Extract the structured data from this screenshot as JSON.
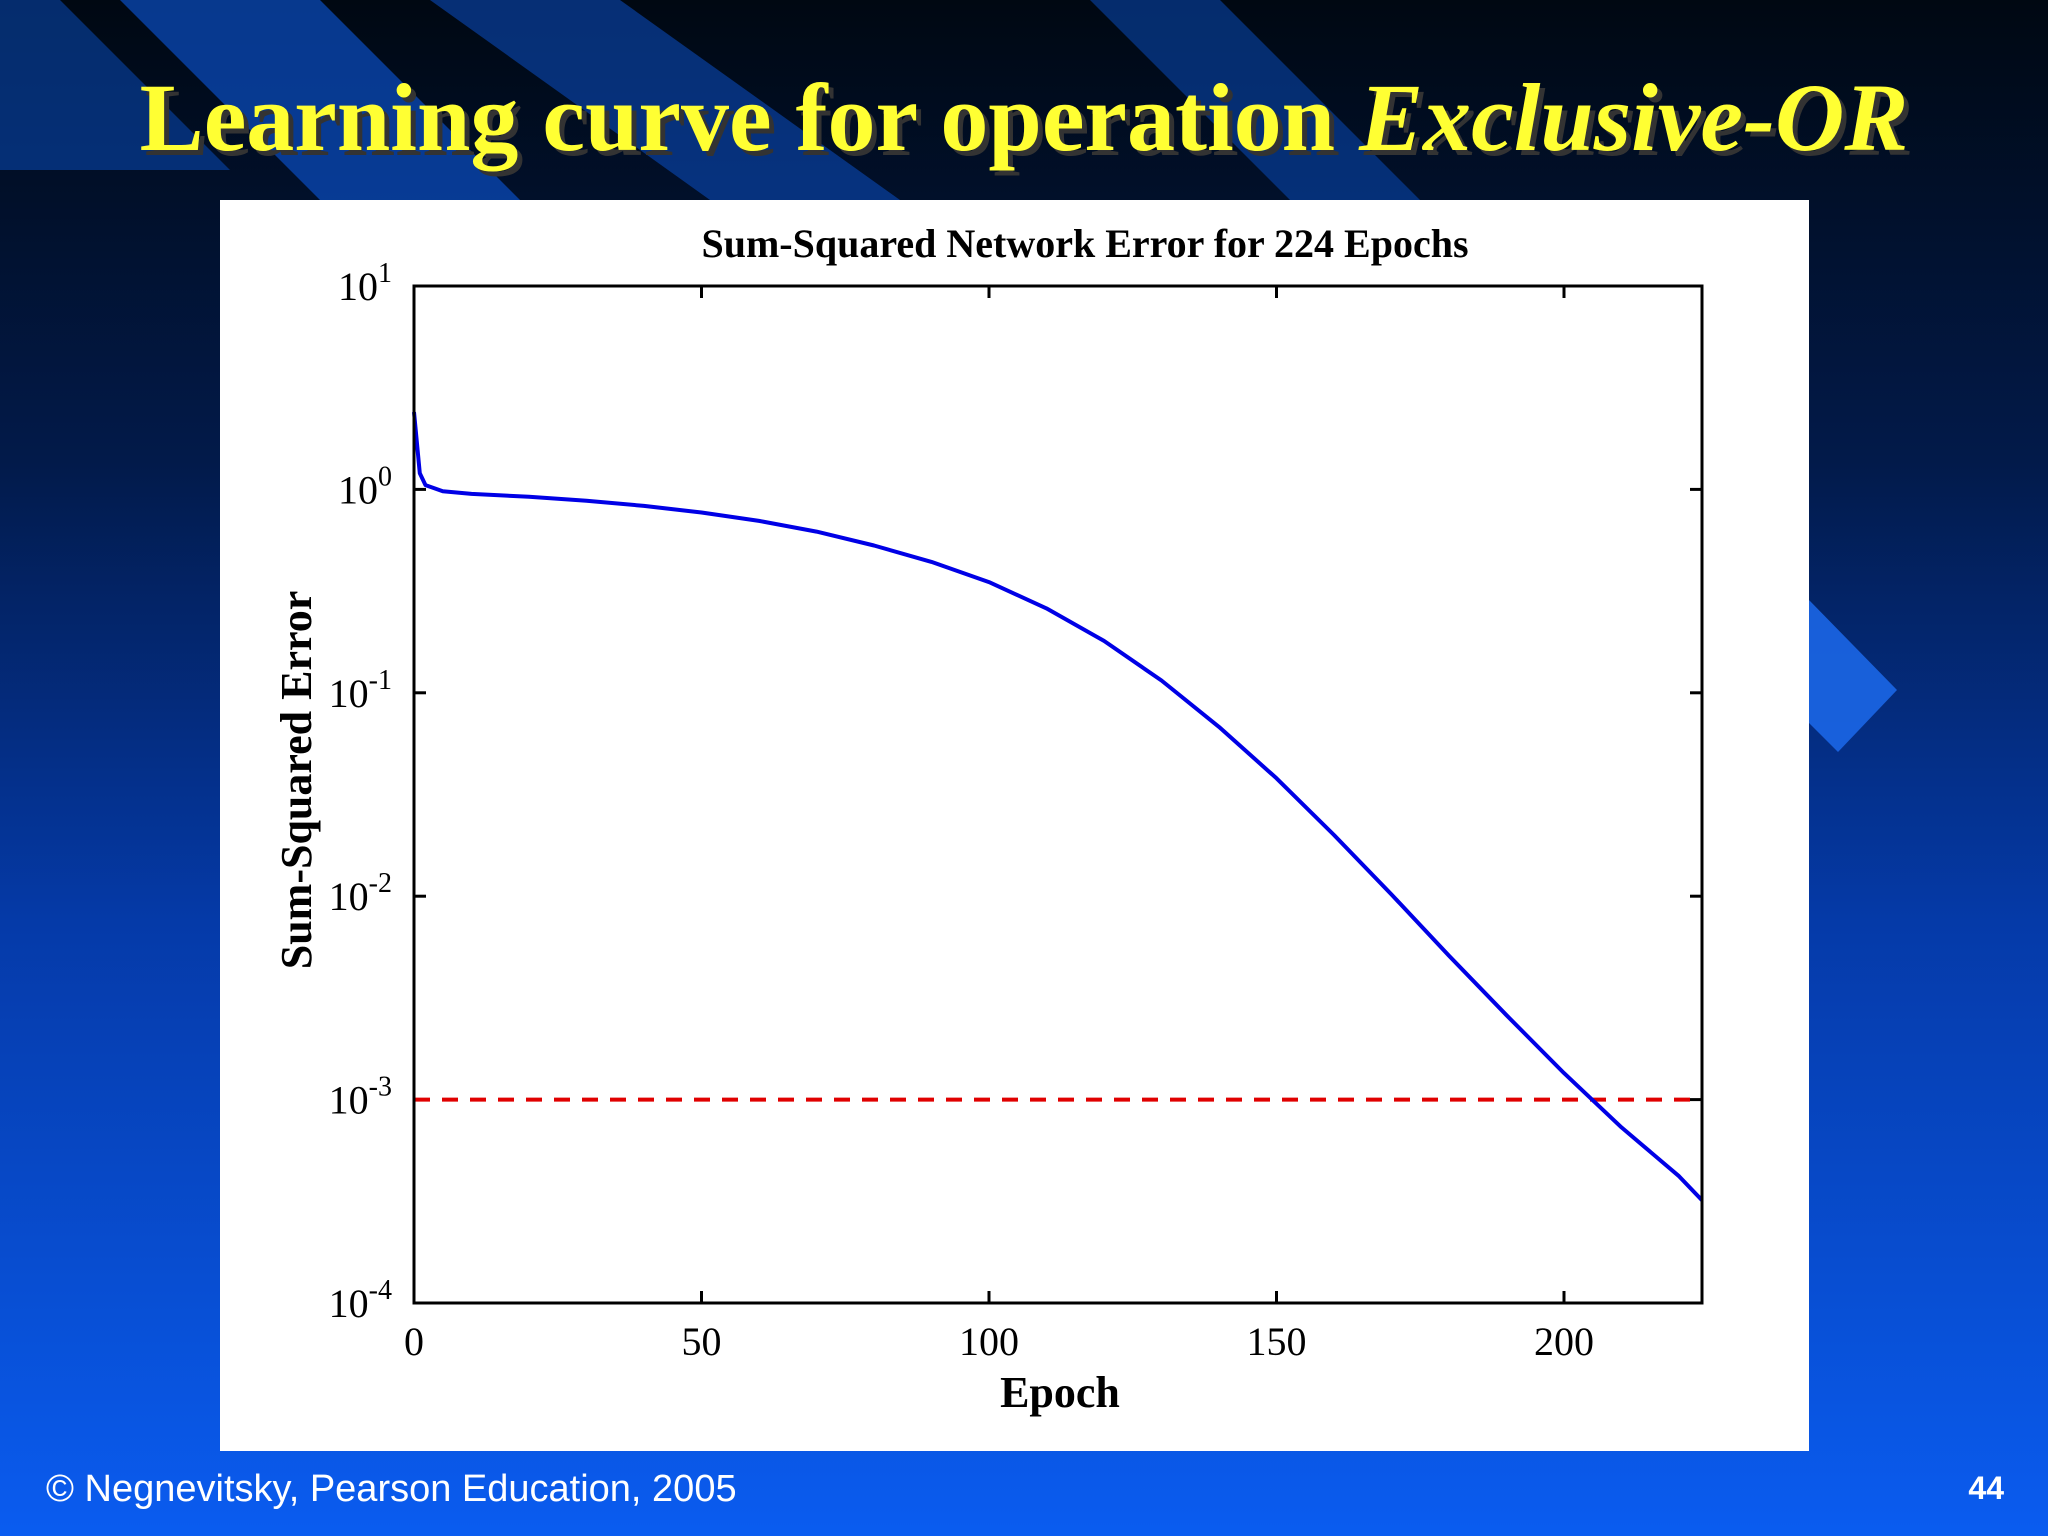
{
  "slide": {
    "title_main": "Learning curve for operation ",
    "title_emphasis": "Exclusive-OR",
    "footer_copyright": "© Negnevitsky, Pearson Education, 2005",
    "page_number": "44",
    "title_color": "#ffff33"
  },
  "chart_data": {
    "type": "line",
    "title": "Sum-Squared Network Error for 224 Epochs",
    "xlabel": "Epoch",
    "ylabel": "Sum-Squared Error",
    "xlim": [
      0,
      224
    ],
    "ylim": [
      0.0001,
      10
    ],
    "yscale": "log",
    "grid": false,
    "x_ticks": [
      0,
      50,
      100,
      150,
      200
    ],
    "y_ticks": [
      {
        "value": 10,
        "base": "10",
        "exp": "1"
      },
      {
        "value": 1,
        "base": "10",
        "exp": "0"
      },
      {
        "value": 0.1,
        "base": "10",
        "exp": "-1"
      },
      {
        "value": 0.01,
        "base": "10",
        "exp": "-2"
      },
      {
        "value": 0.001,
        "base": "10",
        "exp": "-3"
      },
      {
        "value": 0.0001,
        "base": "10",
        "exp": "-4"
      }
    ],
    "series": [
      {
        "color": "#0000e6",
        "x": [
          0,
          1,
          2,
          5,
          10,
          20,
          30,
          40,
          50,
          60,
          70,
          80,
          90,
          100,
          110,
          120,
          130,
          140,
          150,
          160,
          170,
          180,
          190,
          200,
          210,
          220,
          224
        ],
        "y": [
          2.4,
          1.2,
          1.05,
          0.98,
          0.95,
          0.92,
          0.88,
          0.83,
          0.77,
          0.7,
          0.62,
          0.53,
          0.44,
          0.35,
          0.26,
          0.18,
          0.115,
          0.068,
          0.038,
          0.02,
          0.0102,
          0.0051,
          0.0026,
          0.00135,
          0.00073,
          0.00042,
          0.00032
        ]
      }
    ],
    "reference_lines": [
      {
        "y": 0.001,
        "color": "#e00000",
        "style": "dashed"
      }
    ]
  }
}
